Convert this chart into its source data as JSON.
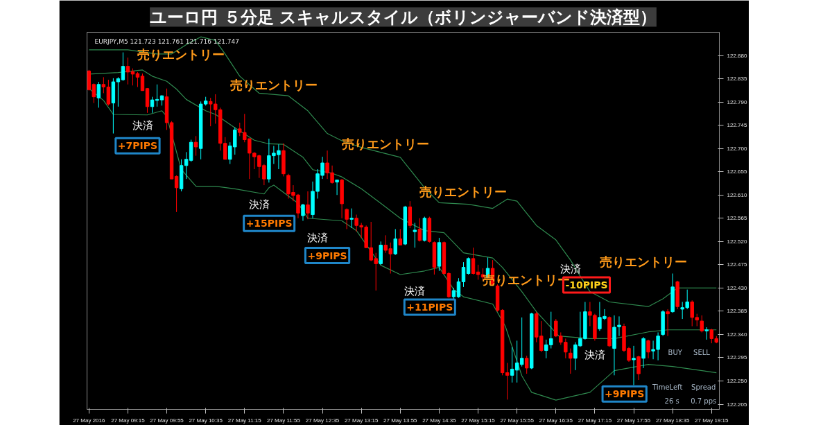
{
  "chart_data": {
    "type": "candlestick",
    "title": "ユーロ円 ５分足 スキャルスタイル（ボリンジャーバンド決済型）",
    "x": [
      "2016-05-27T08:35",
      "2016-05-27T08:40",
      "2016-05-27T08:45",
      "2016-05-27T08:50",
      "2016-05-27T08:55",
      "2016-05-27T09:00",
      "2016-05-27T09:05",
      "2016-05-27T09:10",
      "2016-05-27T09:15",
      "2016-05-27T09:20",
      "2016-05-27T09:25",
      "2016-05-27T09:30",
      "2016-05-27T09:35",
      "2016-05-27T09:40",
      "2016-05-27T09:45",
      "2016-05-27T09:50",
      "2016-05-27T09:55",
      "2016-05-27T10:00",
      "2016-05-27T10:05",
      "2016-05-27T10:10",
      "2016-05-27T10:15",
      "2016-05-27T10:20",
      "2016-05-27T10:25",
      "2016-05-27T10:30",
      "2016-05-27T10:35",
      "2016-05-27T10:40",
      "2016-05-27T10:45",
      "2016-05-27T10:50",
      "2016-05-27T10:55",
      "2016-05-27T11:00",
      "2016-05-27T11:05",
      "2016-05-27T11:10",
      "2016-05-27T11:15",
      "2016-05-27T11:20",
      "2016-05-27T11:25",
      "2016-05-27T11:30",
      "2016-05-27T11:35",
      "2016-05-27T11:40",
      "2016-05-27T11:45",
      "2016-05-27T11:50",
      "2016-05-27T11:55",
      "2016-05-27T12:00",
      "2016-05-27T12:05",
      "2016-05-27T12:10",
      "2016-05-27T12:15",
      "2016-05-27T12:20",
      "2016-05-27T12:25",
      "2016-05-27T12:30",
      "2016-05-27T12:35",
      "2016-05-27T12:40",
      "2016-05-27T12:45",
      "2016-05-27T12:50",
      "2016-05-27T12:55",
      "2016-05-27T13:00",
      "2016-05-27T13:05",
      "2016-05-27T13:10",
      "2016-05-27T13:15",
      "2016-05-27T13:20",
      "2016-05-27T13:25",
      "2016-05-27T13:30",
      "2016-05-27T13:35",
      "2016-05-27T13:40",
      "2016-05-27T13:45",
      "2016-05-27T13:50",
      "2016-05-27T13:55",
      "2016-05-27T14:00",
      "2016-05-27T14:05",
      "2016-05-27T14:10",
      "2016-05-27T14:15",
      "2016-05-27T14:20",
      "2016-05-27T14:25",
      "2016-05-27T14:30",
      "2016-05-27T14:35",
      "2016-05-27T14:40",
      "2016-05-27T14:45",
      "2016-05-27T14:50",
      "2016-05-27T14:55",
      "2016-05-27T15:00",
      "2016-05-27T15:05",
      "2016-05-27T15:10",
      "2016-05-27T15:15",
      "2016-05-27T15:20",
      "2016-05-27T15:25",
      "2016-05-27T15:30",
      "2016-05-27T15:35",
      "2016-05-27T15:40",
      "2016-05-27T15:45",
      "2016-05-27T15:50",
      "2016-05-27T15:55",
      "2016-05-27T16:00",
      "2016-05-27T16:05",
      "2016-05-27T16:10",
      "2016-05-27T16:15",
      "2016-05-27T16:20",
      "2016-05-27T16:25",
      "2016-05-27T16:30",
      "2016-05-27T16:35",
      "2016-05-27T16:40",
      "2016-05-27T16:45",
      "2016-05-27T16:50",
      "2016-05-27T16:55",
      "2016-05-27T17:00",
      "2016-05-27T17:05",
      "2016-05-27T17:10",
      "2016-05-27T17:15",
      "2016-05-27T17:20",
      "2016-05-27T17:25",
      "2016-05-27T17:30",
      "2016-05-27T17:35",
      "2016-05-27T17:40",
      "2016-05-27T17:45",
      "2016-05-27T17:50",
      "2016-05-27T17:55",
      "2016-05-27T18:00",
      "2016-05-27T18:05",
      "2016-05-27T18:10",
      "2016-05-27T18:15",
      "2016-05-27T18:20",
      "2016-05-27T18:25",
      "2016-05-27T18:30",
      "2016-05-27T18:35",
      "2016-05-27T18:40",
      "2016-05-27T18:45",
      "2016-05-27T18:50",
      "2016-05-27T18:55",
      "2016-05-27T19:00",
      "2016-05-27T19:05",
      "2016-05-27T19:10",
      "2016-05-27T19:15",
      "2016-05-27T19:20"
    ],
    "ohlc": [
      [
        122.85,
        122.852,
        122.812,
        122.814
      ],
      [
        122.824,
        122.826,
        122.788,
        122.8
      ],
      [
        122.798,
        122.829,
        122.779,
        122.824
      ],
      [
        122.824,
        122.838,
        122.807,
        122.819
      ],
      [
        122.819,
        122.833,
        122.783,
        122.786
      ],
      [
        122.788,
        122.836,
        122.729,
        122.829
      ],
      [
        122.829,
        122.838,
        122.781,
        122.835
      ],
      [
        122.833,
        122.886,
        122.831,
        122.859
      ],
      [
        122.859,
        122.876,
        122.824,
        122.848
      ],
      [
        122.849,
        122.855,
        122.822,
        122.844
      ],
      [
        122.845,
        122.848,
        122.819,
        122.838
      ],
      [
        122.84,
        122.845,
        122.812,
        122.812
      ],
      [
        122.816,
        122.817,
        122.769,
        122.781
      ],
      [
        122.781,
        122.8,
        122.769,
        122.794
      ],
      [
        122.793,
        122.824,
        122.781,
        122.795
      ],
      [
        122.794,
        122.803,
        122.783,
        122.802
      ],
      [
        122.8,
        122.816,
        122.736,
        122.75
      ],
      [
        122.75,
        122.753,
        122.641,
        122.641
      ],
      [
        122.646,
        122.648,
        122.577,
        122.624
      ],
      [
        122.622,
        122.679,
        122.617,
        122.667
      ],
      [
        122.667,
        122.693,
        122.641,
        122.679
      ],
      [
        122.677,
        122.717,
        122.674,
        122.712
      ],
      [
        122.712,
        122.724,
        122.686,
        122.703
      ],
      [
        122.7,
        122.791,
        122.679,
        122.786
      ],
      [
        122.786,
        122.8,
        122.783,
        122.792
      ],
      [
        122.791,
        122.798,
        122.743,
        122.786
      ],
      [
        122.786,
        122.805,
        122.748,
        122.775
      ],
      [
        122.775,
        122.779,
        122.696,
        122.71
      ],
      [
        122.71,
        122.722,
        122.679,
        122.679
      ],
      [
        122.679,
        122.712,
        122.67,
        122.705
      ],
      [
        122.703,
        122.741,
        122.688,
        122.736
      ],
      [
        122.738,
        122.75,
        122.724,
        122.731
      ],
      [
        122.731,
        122.767,
        122.712,
        122.717
      ],
      [
        122.719,
        122.719,
        122.641,
        122.691
      ],
      [
        122.691,
        122.693,
        122.66,
        122.684
      ],
      [
        122.686,
        122.688,
        122.643,
        122.665
      ],
      [
        122.667,
        122.67,
        122.629,
        122.641
      ],
      [
        122.641,
        122.719,
        122.634,
        122.686
      ],
      [
        122.686,
        122.705,
        122.67,
        122.691
      ],
      [
        122.688,
        122.708,
        122.66,
        122.696
      ],
      [
        122.696,
        122.71,
        122.646,
        122.651
      ],
      [
        122.648,
        122.651,
        122.603,
        122.612
      ],
      [
        122.615,
        122.629,
        122.598,
        122.609
      ],
      [
        122.61,
        122.612,
        122.565,
        122.575
      ],
      [
        122.57,
        122.593,
        122.56,
        122.591
      ],
      [
        122.591,
        122.617,
        122.563,
        122.575
      ],
      [
        122.572,
        122.636,
        122.565,
        122.617
      ],
      [
        122.617,
        122.66,
        122.603,
        122.651
      ],
      [
        122.648,
        122.684,
        122.641,
        122.672
      ],
      [
        122.672,
        122.696,
        122.641,
        122.653
      ],
      [
        122.653,
        122.667,
        122.632,
        122.634
      ],
      [
        122.635,
        122.639,
        122.61,
        122.639
      ],
      [
        122.639,
        122.641,
        122.565,
        122.593
      ],
      [
        122.582,
        122.584,
        122.544,
        122.563
      ],
      [
        122.563,
        122.584,
        122.546,
        122.565
      ],
      [
        122.565,
        122.572,
        122.539,
        122.551
      ],
      [
        122.551,
        122.556,
        122.527,
        122.548
      ],
      [
        122.548,
        122.551,
        122.508,
        122.508
      ],
      [
        122.508,
        122.558,
        122.482,
        122.484
      ],
      [
        122.487,
        122.498,
        122.425,
        122.477
      ],
      [
        122.477,
        122.52,
        122.475,
        122.513
      ],
      [
        122.513,
        122.532,
        122.498,
        122.503
      ],
      [
        122.506,
        122.518,
        122.458,
        122.496
      ],
      [
        122.496,
        122.544,
        122.494,
        122.525
      ],
      [
        122.525,
        122.544,
        122.513,
        122.513
      ],
      [
        122.515,
        122.589,
        122.513,
        122.587
      ],
      [
        122.587,
        122.598,
        122.546,
        122.551
      ],
      [
        122.539,
        122.556,
        122.508,
        122.542
      ],
      [
        122.544,
        122.565,
        122.52,
        122.522
      ],
      [
        122.522,
        122.568,
        122.52,
        122.565
      ],
      [
        122.565,
        122.568,
        122.518,
        122.52
      ],
      [
        122.518,
        122.52,
        122.456,
        122.47
      ],
      [
        122.472,
        122.527,
        122.463,
        122.518
      ],
      [
        122.518,
        122.52,
        122.456,
        122.458
      ],
      [
        122.458,
        122.461,
        122.411,
        122.413
      ],
      [
        122.413,
        122.43,
        122.408,
        122.425
      ],
      [
        122.413,
        122.449,
        122.411,
        122.442
      ],
      [
        122.442,
        122.48,
        122.432,
        122.47
      ],
      [
        122.458,
        122.489,
        122.456,
        122.487
      ],
      [
        122.487,
        122.508,
        122.456,
        122.458
      ],
      [
        122.461,
        122.475,
        122.446,
        122.456
      ],
      [
        122.456,
        122.468,
        122.444,
        122.451
      ],
      [
        122.451,
        122.489,
        122.449,
        122.468
      ],
      [
        122.468,
        122.484,
        122.434,
        122.437
      ],
      [
        122.434,
        122.437,
        122.384,
        122.387
      ],
      [
        122.387,
        122.389,
        122.261,
        122.266
      ],
      [
        122.266,
        122.285,
        122.214,
        122.261
      ],
      [
        122.261,
        122.316,
        122.247,
        122.273
      ],
      [
        122.271,
        122.328,
        122.247,
        122.285
      ],
      [
        122.282,
        122.373,
        122.278,
        122.294
      ],
      [
        122.294,
        122.299,
        122.264,
        122.275
      ],
      [
        122.275,
        122.382,
        122.273,
        122.38
      ],
      [
        122.38,
        122.384,
        122.325,
        122.335
      ],
      [
        122.337,
        122.366,
        122.306,
        122.309
      ],
      [
        122.309,
        122.33,
        122.294,
        122.32
      ],
      [
        122.32,
        122.384,
        122.313,
        122.332
      ],
      [
        122.366,
        122.37,
        122.335,
        122.337
      ],
      [
        122.337,
        122.344,
        122.32,
        122.325
      ],
      [
        122.325,
        122.332,
        122.294,
        122.306
      ],
      [
        122.304,
        122.313,
        122.264,
        122.294
      ],
      [
        122.294,
        122.325,
        122.271,
        122.32
      ],
      [
        122.318,
        122.384,
        122.316,
        122.332
      ],
      [
        122.332,
        122.403,
        122.33,
        122.384
      ],
      [
        122.384,
        122.403,
        122.356,
        122.377
      ],
      [
        122.377,
        122.38,
        122.328,
        122.332
      ],
      [
        122.351,
        122.403,
        122.347,
        122.373
      ],
      [
        122.371,
        122.389,
        122.368,
        122.375
      ],
      [
        122.373,
        122.375,
        122.316,
        122.318
      ],
      [
        122.313,
        122.377,
        122.261,
        122.354
      ],
      [
        122.355,
        122.375,
        122.337,
        122.358
      ],
      [
        122.356,
        122.361,
        122.306,
        122.309
      ],
      [
        122.313,
        122.316,
        122.287,
        122.29
      ],
      [
        122.291,
        122.318,
        122.242,
        122.294
      ],
      [
        122.297,
        122.299,
        122.252,
        122.264
      ],
      [
        122.294,
        122.335,
        122.275,
        122.332
      ],
      [
        122.328,
        122.33,
        122.294,
        122.306
      ],
      [
        122.308,
        122.328,
        122.292,
        122.311
      ],
      [
        122.311,
        122.344,
        122.29,
        122.337
      ],
      [
        122.34,
        122.387,
        122.337,
        122.384
      ],
      [
        122.384,
        122.389,
        122.337,
        122.38
      ],
      [
        122.384,
        122.458,
        122.382,
        122.432
      ],
      [
        122.442,
        122.444,
        122.389,
        122.394
      ],
      [
        122.389,
        122.403,
        122.37,
        122.392
      ],
      [
        122.392,
        122.427,
        122.389,
        122.403
      ],
      [
        122.403,
        122.406,
        122.356,
        122.373
      ],
      [
        122.373,
        122.38,
        122.356,
        122.368
      ],
      [
        122.366,
        122.377,
        122.344,
        122.347
      ],
      [
        122.347,
        122.354,
        122.33,
        122.349
      ],
      [
        122.349,
        122.351,
        122.323,
        122.332
      ],
      [
        122.332,
        122.337,
        122.323,
        122.325
      ]
    ],
    "colors": [
      "#ff0000",
      "#ff0000",
      "#00ffff",
      "#ff0000",
      "#ff0000",
      "#00ffff",
      "#00ffff",
      "#00ffff",
      "#ff0000",
      "#ff0000",
      "#ff0000",
      "#ff0000",
      "#ff0000",
      "#00ffff",
      "#00ffff",
      "#00ffff",
      "#ff0000",
      "#ff0000",
      "#ff0000",
      "#00ffff",
      "#00ffff",
      "#00ffff",
      "#ff0000",
      "#00ffff",
      "#00ffff",
      "#ff0000",
      "#ff0000",
      "#ff0000",
      "#ff0000",
      "#00ffff",
      "#00ffff",
      "#ff0000",
      "#ff0000",
      "#ff0000",
      "#ff0000",
      "#ff0000",
      "#ff0000",
      "#00ffff",
      "#00ffff",
      "#00ffff",
      "#ff0000",
      "#ff0000",
      "#ff0000",
      "#ff0000",
      "#00ffff",
      "#ff0000",
      "#00ffff",
      "#00ffff",
      "#00ffff",
      "#ff0000",
      "#ff0000",
      "#00ffff",
      "#ff0000",
      "#ff0000",
      "#00ffff",
      "#ff0000",
      "#ff0000",
      "#ff0000",
      "#ff0000",
      "#ff0000",
      "#00ffff",
      "#ff0000",
      "#ff0000",
      "#00ffff",
      "#ff0000",
      "#00ffff",
      "#ff0000",
      "#00ffff",
      "#ff0000",
      "#00ffff",
      "#ff0000",
      "#ff0000",
      "#00ffff",
      "#ff0000",
      "#ff0000",
      "#00ffff",
      "#00ffff",
      "#00ffff",
      "#00ffff",
      "#ff0000",
      "#ff0000",
      "#ff0000",
      "#00ffff",
      "#ff0000",
      "#ff0000",
      "#ff0000",
      "#ff0000",
      "#00ffff",
      "#00ffff",
      "#00ffff",
      "#ff0000",
      "#00ffff",
      "#ff0000",
      "#ff0000",
      "#00ffff",
      "#00ffff",
      "#ff0000",
      "#ff0000",
      "#ff0000",
      "#ff0000",
      "#00ffff",
      "#00ffff",
      "#00ffff",
      "#ff0000",
      "#ff0000",
      "#00ffff",
      "#00ffff",
      "#ff0000",
      "#00ffff",
      "#00ffff",
      "#ff0000",
      "#ff0000",
      "#00ffff",
      "#ff0000",
      "#00ffff",
      "#ff0000",
      "#00ffff",
      "#00ffff",
      "#00ffff",
      "#ff0000",
      "#00ffff",
      "#ff0000",
      "#00ffff",
      "#00ffff",
      "#ff0000",
      "#ff0000",
      "#ff0000",
      "#00ffff",
      "#ff0000",
      "#ff0000"
    ],
    "series": [
      {
        "type": "line",
        "color": "#2f8a4f",
        "x": [
          "2016-05-27T08:35",
          "2016-05-27T09:15",
          "2016-05-27T09:45",
          "2016-05-27T10:00",
          "2016-05-27T10:15",
          "2016-05-27T10:30",
          "2016-05-27T10:45",
          "2016-05-27T10:55",
          "2016-05-27T11:10",
          "2016-05-27T11:30",
          "2016-05-27T12:00",
          "2016-05-27T12:20",
          "2016-05-27T12:40",
          "2016-05-27T12:55",
          "2016-05-27T13:15",
          "2016-05-27T13:55",
          "2016-05-27T14:20",
          "2016-05-27T14:35",
          "2016-05-27T15:05",
          "2016-05-27T15:30",
          "2016-05-27T15:45",
          "2016-05-27T15:55",
          "2016-05-27T16:15",
          "2016-05-27T16:35",
          "2016-05-27T16:50",
          "2016-05-27T17:00",
          "2016-05-27T17:10",
          "2016-05-27T17:30",
          "2016-05-27T18:10",
          "2016-05-27T18:25",
          "2016-05-27T18:40",
          "2016-05-27T19:20"
        ],
        "values": [
          122.891,
          122.891,
          122.883,
          122.883,
          122.901,
          122.916,
          122.909,
          122.883,
          122.84,
          122.807,
          122.802,
          122.773,
          122.729,
          122.715,
          122.702,
          122.683,
          122.624,
          122.595,
          122.592,
          122.584,
          122.602,
          122.598,
          122.551,
          122.523,
          122.484,
          122.453,
          122.423,
          122.403,
          122.394,
          122.409,
          122.43,
          122.43
        ]
      },
      {
        "type": "line",
        "color": "#2f8a4f",
        "x": [
          "2016-05-27T08:35",
          "2016-05-27T09:05",
          "2016-05-27T09:30",
          "2016-05-27T09:40",
          "2016-05-27T09:55",
          "2016-05-27T10:05",
          "2016-05-27T10:15",
          "2016-05-27T10:35",
          "2016-05-27T10:45",
          "2016-05-27T11:05",
          "2016-05-27T11:25",
          "2016-05-27T11:40",
          "2016-05-27T11:55",
          "2016-05-27T12:15",
          "2016-05-27T12:25",
          "2016-05-27T12:45",
          "2016-05-27T12:55",
          "2016-05-27T13:15",
          "2016-05-27T13:35",
          "2016-05-27T13:55",
          "2016-05-27T14:20",
          "2016-05-27T14:40",
          "2016-05-27T15:00",
          "2016-05-27T15:30",
          "2016-05-27T15:40",
          "2016-05-27T16:00",
          "2016-05-27T16:15",
          "2016-05-27T16:38",
          "2016-05-27T17:10",
          "2016-05-27T17:35",
          "2016-05-27T18:10",
          "2016-05-27T18:30",
          "2016-05-27T19:20"
        ],
        "values": [
          122.844,
          122.847,
          122.852,
          122.84,
          122.83,
          122.815,
          122.795,
          122.773,
          122.766,
          122.74,
          122.716,
          122.709,
          122.708,
          122.683,
          122.659,
          122.652,
          122.645,
          122.622,
          122.594,
          122.565,
          122.541,
          122.537,
          122.498,
          122.488,
          122.47,
          122.423,
          122.384,
          122.337,
          122.332,
          122.332,
          122.345,
          122.349,
          122.349
        ]
      },
      {
        "type": "line",
        "color": "#2f8a4f",
        "x": [
          "2016-05-27T08:35",
          "2016-05-27T08:50",
          "2016-05-27T09:00",
          "2016-05-27T09:35",
          "2016-05-27T09:50",
          "2016-05-27T09:55",
          "2016-05-27T10:10",
          "2016-05-27T10:25",
          "2016-05-27T10:45",
          "2016-05-27T11:05",
          "2016-05-27T11:35",
          "2016-05-27T11:40",
          "2016-05-27T11:45",
          "2016-05-27T12:10",
          "2016-05-27T12:20",
          "2016-05-27T12:55",
          "2016-05-27T13:10",
          "2016-05-27T13:35",
          "2016-05-27T13:55",
          "2016-05-27T14:20",
          "2016-05-27T14:35",
          "2016-05-27T14:50",
          "2016-05-27T15:00",
          "2016-05-27T15:30",
          "2016-05-27T15:43",
          "2016-05-27T16:00",
          "2016-05-27T16:10",
          "2016-05-27T16:35",
          "2016-05-27T17:10",
          "2016-05-27T17:35",
          "2016-05-27T18:10",
          "2016-05-27T18:35",
          "2016-05-27T19:20"
        ],
        "values": [
          122.816,
          122.793,
          122.766,
          122.765,
          122.773,
          122.762,
          122.659,
          122.627,
          122.627,
          122.622,
          122.612,
          122.624,
          122.629,
          122.594,
          122.565,
          122.56,
          122.541,
          122.474,
          122.456,
          122.463,
          122.47,
          122.427,
          122.413,
          122.399,
          122.356,
          122.26,
          122.228,
          122.213,
          122.228,
          122.27,
          122.282,
          122.278,
          122.266
        ]
      }
    ],
    "xlim": [
      "2016-05-27T08:33",
      "2016-05-27T19:23"
    ],
    "xticks": [
      {
        "value": "2016-05-27T08:35",
        "label": "27 May 2016"
      },
      {
        "value": "2016-05-27T09:15",
        "label": "27 May 09:15"
      },
      {
        "value": "2016-05-27T09:55",
        "label": "27 May 09:55"
      },
      {
        "value": "2016-05-27T10:35",
        "label": "27 May 10:35"
      },
      {
        "value": "2016-05-27T11:15",
        "label": "27 May 11:15"
      },
      {
        "value": "2016-05-27T11:55",
        "label": "27 May 11:55"
      },
      {
        "value": "2016-05-27T12:35",
        "label": "27 May 12:35"
      },
      {
        "value": "2016-05-27T13:15",
        "label": "27 May 13:15"
      },
      {
        "value": "2016-05-27T13:55",
        "label": "27 May 13:55"
      },
      {
        "value": "2016-05-27T14:35",
        "label": "27 May 14:35"
      },
      {
        "value": "2016-05-27T15:15",
        "label": "27 May 15:15"
      },
      {
        "value": "2016-05-27T15:55",
        "label": "27 May 15:55"
      },
      {
        "value": "2016-05-27T16:35",
        "label": "27 May 16:35"
      },
      {
        "value": "2016-05-27T17:15",
        "label": "27 May 17:15"
      },
      {
        "value": "2016-05-27T17:55",
        "label": "27 May 17:55"
      },
      {
        "value": "2016-05-27T18:35",
        "label": "27 May 18:35"
      },
      {
        "value": "2016-05-27T19:15",
        "label": "27 May 19:15"
      }
    ],
    "ylim": [
      122.195,
      122.925
    ],
    "yticks": [
      {
        "value": 122.88,
        "label": "122.880"
      },
      122.835,
      {
        "value": 122.79,
        "label": "122.790"
      },
      122.745,
      {
        "value": 122.7,
        "label": "122.700"
      },
      122.655,
      {
        "value": 122.61,
        "label": "122.610"
      },
      122.565,
      {
        "value": 122.52,
        "label": "122.520"
      },
      122.475,
      {
        "value": 122.43,
        "label": "122.430"
      },
      122.385,
      {
        "value": 122.34,
        "label": "122.340"
      },
      122.295,
      {
        "value": 122.25,
        "label": "122.250"
      },
      122.205
    ],
    "annotations": [
      "EURJPY,M5 121.723 121.761 121.716 121.747",
      "売りエントリー",
      "売りエントリー",
      "売りエントリー",
      "売りエントリー",
      "売りエントリー",
      "売りエントリー",
      "決済",
      "決済",
      "決済",
      "決済",
      "決済",
      "決済",
      "+7PIPS",
      "+15PIPS",
      "+9PIPS",
      "+11PIPS",
      "-10PIPS",
      "+9PIPS",
      "BUY",
      "SELL",
      "TimeLeft",
      "26 s",
      "Spread",
      "0.7 pps"
    ]
  }
}
